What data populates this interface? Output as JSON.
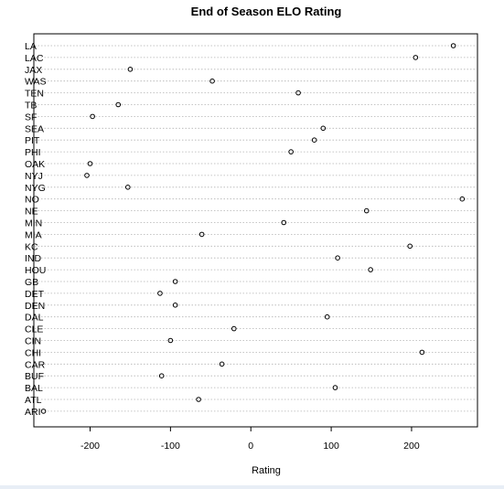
{
  "chart_data": {
    "type": "scatter",
    "title": "End of Season ELO Rating",
    "xlabel": "Rating",
    "ylabel": "",
    "xlim": [
      -270,
      282
    ],
    "xticks": [
      -200,
      -100,
      0,
      100,
      200
    ],
    "xtick_labels": [
      "-200",
      "-100",
      "0",
      "100",
      "200"
    ],
    "grid": "horizontal-dotted",
    "legend": "none",
    "point_style": "open-circle",
    "categories": [
      "LA",
      "LAC",
      "JAX",
      "WAS",
      "TEN",
      "TB",
      "SF",
      "SEA",
      "PIT",
      "PHI",
      "OAK",
      "NYJ",
      "NYG",
      "NO",
      "NE",
      "MIN",
      "MIA",
      "KC",
      "IND",
      "HOU",
      "GB",
      "DET",
      "DEN",
      "DAL",
      "CLE",
      "CIN",
      "CHI",
      "CAR",
      "BUF",
      "BAL",
      "ATL",
      "ARI"
    ],
    "values": [
      252,
      205,
      -150,
      -48,
      59,
      -165,
      -197,
      90,
      79,
      50,
      -200,
      -204,
      -153,
      263,
      144,
      41,
      -61,
      198,
      108,
      149,
      -94,
      -113,
      -94,
      95,
      -21,
      -100,
      213,
      -36,
      -111,
      105,
      -65,
      -258
    ]
  },
  "colors": {
    "axis": "#000000",
    "grid": "#b3b3b3",
    "point": "#000000",
    "background": "#ffffff",
    "bottom_strip": "#e8eef6"
  }
}
